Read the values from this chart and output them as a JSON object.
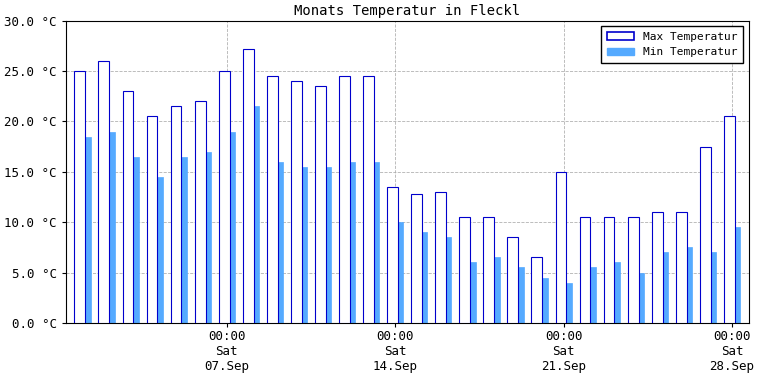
{
  "title": "Monats Temperatur in Fleckl",
  "ylim": [
    0,
    30
  ],
  "ytick_vals": [
    0,
    5,
    10,
    15,
    20,
    25,
    30
  ],
  "ytick_labels": [
    "0.0 °C",
    "5.0 °C",
    "10.0 °C",
    "15.0 °C",
    "20.0 °C",
    "25.0 °C",
    "30.0 °C"
  ],
  "xtick_pos_days": [
    6,
    13,
    20,
    27
  ],
  "xtick_labels": [
    "00:00\nSat\n07.Sep",
    "00:00\nSat\n14.Sep",
    "00:00\nSat\n21.Sep",
    "00:00\nSat\n28.Sep"
  ],
  "color_max_edge": "#0000CC",
  "color_max_fill": "#ffffff",
  "color_min_fill": "#55AAFF",
  "color_min_edge": "#55AAFF",
  "legend_max": "Max Temperatur",
  "legend_min": "Min Temperatur",
  "bg_color": "#ffffff",
  "grid_color": "#AAAAAA",
  "title_fontsize": 10,
  "tick_fontsize": 9,
  "max_temps": [
    25.0,
    26.0,
    23.0,
    20.5,
    21.5,
    22.0,
    25.0,
    27.2,
    24.5,
    24.0,
    23.5,
    24.5,
    24.5,
    13.5,
    12.8,
    13.0,
    10.5,
    10.5,
    8.5,
    6.5,
    15.0,
    10.5,
    10.5,
    10.5,
    11.0,
    11.0,
    17.5,
    20.5
  ],
  "min_temps": [
    18.5,
    19.0,
    16.5,
    14.5,
    16.5,
    17.0,
    19.0,
    21.5,
    16.0,
    15.5,
    15.5,
    16.0,
    16.0,
    10.0,
    9.0,
    8.5,
    6.0,
    6.5,
    5.5,
    4.5,
    4.0,
    5.5,
    6.0,
    5.0,
    7.0,
    7.5,
    7.0,
    9.5
  ]
}
